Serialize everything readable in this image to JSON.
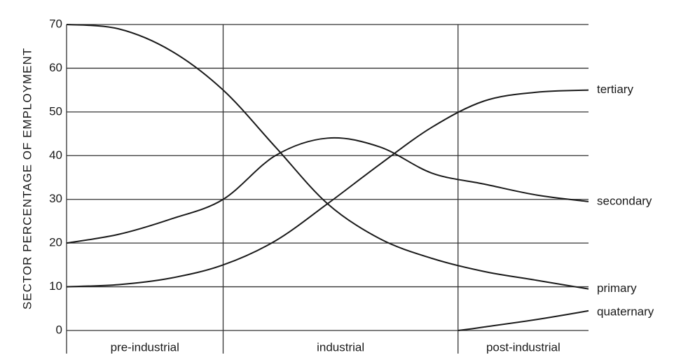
{
  "chart_data": {
    "type": "line",
    "ylabel": "SECTOR PERCENTAGE OF EMPLOYMENT",
    "x": [
      0,
      10,
      20,
      30,
      40,
      50,
      60,
      70,
      80,
      90,
      100
    ],
    "xlim": [
      0,
      100
    ],
    "ylim": [
      0,
      70
    ],
    "yticks": [
      0,
      10,
      20,
      30,
      40,
      50,
      60,
      70
    ],
    "grid": true,
    "phases": [
      {
        "label": "pre-industrial",
        "start": 0,
        "end": 30
      },
      {
        "label": "industrial",
        "start": 30,
        "end": 75
      },
      {
        "label": "post-industrial",
        "start": 75,
        "end": 100
      }
    ],
    "series": [
      {
        "name": "tertiary",
        "color": "#1a1a1a",
        "values": [
          10,
          10.5,
          12,
          15,
          20.5,
          29,
          38,
          46.5,
          52.5,
          54.5,
          55
        ]
      },
      {
        "name": "secondary",
        "color": "#1a1a1a",
        "values": [
          20,
          22,
          25.5,
          30,
          40,
          44,
          42,
          36,
          33.5,
          31,
          29.5
        ]
      },
      {
        "name": "primary",
        "color": "#1a1a1a",
        "values": [
          70,
          69,
          64,
          55,
          42,
          29,
          21,
          16.5,
          13.5,
          11.5,
          9.5
        ]
      },
      {
        "name": "quaternary",
        "color": "#1a1a1a",
        "values": [
          null,
          null,
          null,
          null,
          null,
          null,
          null,
          null,
          0.8,
          2.5,
          4.5
        ]
      }
    ]
  }
}
